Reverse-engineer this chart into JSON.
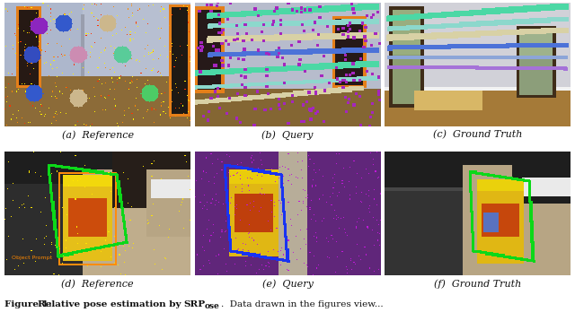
{
  "subcaptions": [
    "(a)  Reference",
    "(b)  Query",
    "(c)  Ground Truth",
    "(d)  Reference",
    "(e)  Query",
    "(f)  Ground Truth"
  ],
  "subcaption_fontsize": 8,
  "caption_bold": "Figure 1: Relative pose estimation by SRP",
  "caption_bold2": "ose",
  "caption_rest": ". Data drawn in the figures view...",
  "caption_fontsize": 7.5,
  "bg_color": "#ffffff",
  "fig_width": 6.4,
  "fig_height": 3.58,
  "dpi": 100
}
